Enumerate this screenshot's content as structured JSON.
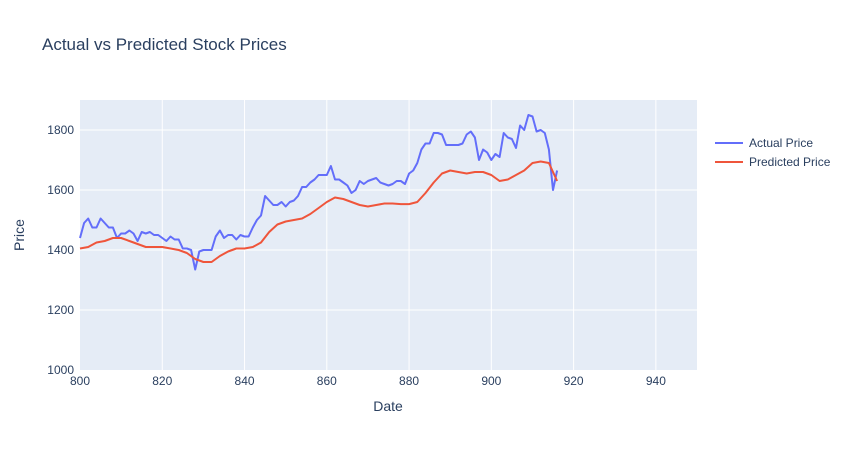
{
  "chart_data": {
    "type": "line",
    "title": "Actual vs Predicted Stock Prices",
    "xlabel": "Date",
    "ylabel": "Price",
    "xlim": [
      800,
      950
    ],
    "ylim": [
      1000,
      1900
    ],
    "xticks": [
      800,
      820,
      840,
      860,
      880,
      900,
      920,
      940
    ],
    "yticks": [
      1000,
      1200,
      1400,
      1600,
      1800
    ],
    "grid": true,
    "legend_position": "top-right",
    "series": [
      {
        "name": "Actual Price",
        "color": "#636efa",
        "x": [
          800,
          801,
          802,
          803,
          804,
          805,
          806,
          807,
          808,
          809,
          810,
          811,
          812,
          813,
          814,
          815,
          816,
          817,
          818,
          819,
          820,
          821,
          822,
          823,
          824,
          825,
          826,
          827,
          828,
          829,
          830,
          831,
          832,
          833,
          834,
          835,
          836,
          837,
          838,
          839,
          840,
          841,
          842,
          843,
          844,
          845,
          846,
          847,
          848,
          849,
          850,
          851,
          852,
          853,
          854,
          855,
          856,
          857,
          858,
          859,
          860,
          861,
          862,
          863,
          864,
          865,
          866,
          867,
          868,
          869,
          870,
          871,
          872,
          873,
          874,
          875,
          876,
          877,
          878,
          879,
          880,
          881,
          882,
          883,
          884,
          885,
          886,
          887,
          888,
          889,
          890,
          891,
          892,
          893,
          894,
          895,
          896,
          897,
          898,
          899,
          900,
          901,
          902,
          903,
          904,
          905,
          906,
          907,
          908,
          909,
          910,
          911,
          912,
          913,
          914,
          915,
          916
        ],
        "y": [
          1440,
          1490,
          1505,
          1475,
          1475,
          1505,
          1490,
          1475,
          1475,
          1440,
          1455,
          1455,
          1465,
          1455,
          1430,
          1460,
          1455,
          1460,
          1450,
          1450,
          1440,
          1430,
          1445,
          1435,
          1435,
          1405,
          1405,
          1400,
          1335,
          1395,
          1400,
          1400,
          1400,
          1445,
          1465,
          1440,
          1450,
          1450,
          1435,
          1450,
          1445,
          1445,
          1475,
          1500,
          1515,
          1580,
          1565,
          1550,
          1550,
          1560,
          1545,
          1560,
          1565,
          1580,
          1610,
          1610,
          1625,
          1635,
          1650,
          1650,
          1650,
          1680,
          1635,
          1635,
          1625,
          1615,
          1590,
          1600,
          1630,
          1620,
          1630,
          1635,
          1640,
          1625,
          1620,
          1615,
          1620,
          1630,
          1630,
          1620,
          1655,
          1665,
          1690,
          1735,
          1755,
          1755,
          1790,
          1790,
          1785,
          1750,
          1750,
          1750,
          1750,
          1755,
          1785,
          1795,
          1775,
          1700,
          1735,
          1725,
          1700,
          1720,
          1710,
          1790,
          1775,
          1770,
          1740,
          1815,
          1800,
          1850,
          1845,
          1795,
          1800,
          1790,
          1735,
          1600,
          1665
        ]
      },
      {
        "name": "Predicted Price",
        "color": "#ef553b",
        "x": [
          800,
          802,
          804,
          806,
          808,
          810,
          812,
          814,
          816,
          818,
          820,
          822,
          824,
          826,
          828,
          830,
          832,
          834,
          836,
          838,
          840,
          842,
          844,
          846,
          848,
          850,
          852,
          854,
          856,
          858,
          860,
          862,
          864,
          866,
          868,
          870,
          872,
          874,
          876,
          878,
          880,
          882,
          884,
          886,
          888,
          890,
          892,
          894,
          896,
          898,
          900,
          902,
          904,
          906,
          908,
          910,
          912,
          914,
          916
        ],
        "y": [
          1405,
          1410,
          1425,
          1430,
          1440,
          1440,
          1430,
          1420,
          1410,
          1410,
          1410,
          1405,
          1400,
          1390,
          1370,
          1360,
          1360,
          1380,
          1395,
          1405,
          1405,
          1410,
          1425,
          1460,
          1485,
          1495,
          1500,
          1505,
          1520,
          1540,
          1560,
          1575,
          1570,
          1560,
          1550,
          1545,
          1550,
          1555,
          1555,
          1553,
          1553,
          1560,
          1590,
          1625,
          1655,
          1665,
          1660,
          1655,
          1660,
          1660,
          1650,
          1630,
          1635,
          1650,
          1665,
          1690,
          1695,
          1690,
          1630
        ]
      }
    ]
  }
}
